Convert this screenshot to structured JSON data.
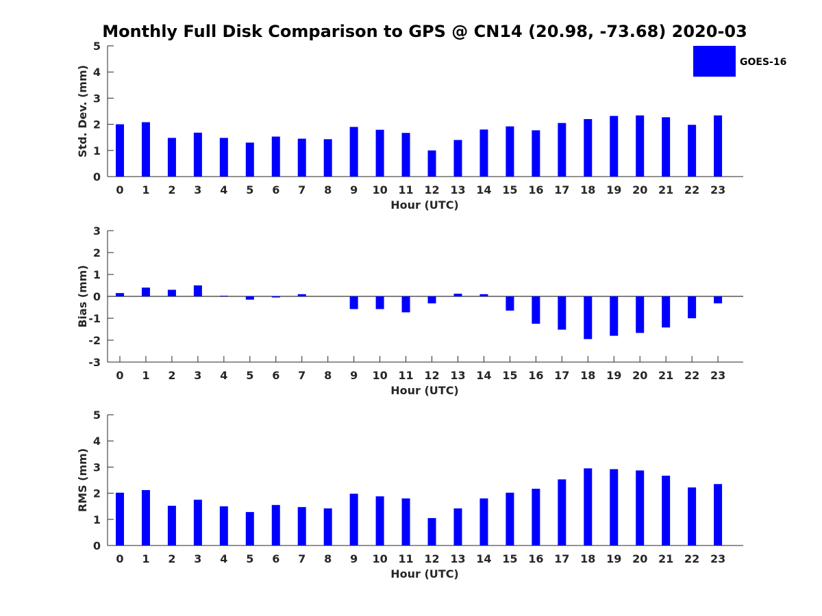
{
  "title": "Monthly Full Disk Comparison to GPS @ CN14 (20.98, -73.68) 2020-03",
  "legend": {
    "label": "GOES-16",
    "position": "top-right"
  },
  "bar_color": "#0000ff",
  "chart_data": [
    {
      "type": "bar",
      "ylabel": "Std. Dev. (mm)",
      "xlabel": "Hour (UTC)",
      "ylim": [
        0,
        5
      ],
      "yticks": [
        0,
        1,
        2,
        3,
        4,
        5
      ],
      "categories": [
        0,
        1,
        2,
        3,
        4,
        5,
        6,
        7,
        8,
        9,
        10,
        11,
        12,
        13,
        14,
        15,
        16,
        17,
        18,
        19,
        20,
        21,
        22,
        23
      ],
      "series": [
        {
          "name": "GOES-16",
          "values": [
            2.0,
            2.08,
            1.48,
            1.68,
            1.48,
            1.3,
            1.53,
            1.45,
            1.43,
            1.9,
            1.79,
            1.67,
            1.0,
            1.4,
            1.8,
            1.92,
            1.77,
            2.05,
            2.2,
            2.32,
            2.34,
            2.27,
            1.98,
            2.34
          ]
        }
      ]
    },
    {
      "type": "bar",
      "ylabel": "Bias (mm)",
      "xlabel": "Hour (UTC)",
      "ylim": [
        -3,
        3
      ],
      "yticks": [
        -3,
        -2,
        -1,
        0,
        1,
        2,
        3
      ],
      "zero_line": true,
      "categories": [
        0,
        1,
        2,
        3,
        4,
        5,
        6,
        7,
        8,
        9,
        10,
        11,
        12,
        13,
        14,
        15,
        16,
        17,
        18,
        19,
        20,
        21,
        22,
        23
      ],
      "series": [
        {
          "name": "GOES-16",
          "values": [
            0.15,
            0.4,
            0.3,
            0.5,
            0.03,
            -0.15,
            -0.05,
            0.1,
            0.0,
            -0.58,
            -0.58,
            -0.73,
            -0.32,
            0.12,
            0.1,
            -0.65,
            -1.25,
            -1.52,
            -1.95,
            -1.8,
            -1.67,
            -1.42,
            -1.0,
            -0.32
          ]
        }
      ]
    },
    {
      "type": "bar",
      "ylabel": "RMS (mm)",
      "xlabel": "Hour (UTC)",
      "ylim": [
        0,
        5
      ],
      "yticks": [
        0,
        1,
        2,
        3,
        4,
        5
      ],
      "categories": [
        0,
        1,
        2,
        3,
        4,
        5,
        6,
        7,
        8,
        9,
        10,
        11,
        12,
        13,
        14,
        15,
        16,
        17,
        18,
        19,
        20,
        21,
        22,
        23
      ],
      "series": [
        {
          "name": "GOES-16",
          "values": [
            2.02,
            2.12,
            1.52,
            1.75,
            1.5,
            1.28,
            1.55,
            1.47,
            1.42,
            1.98,
            1.88,
            1.8,
            1.05,
            1.42,
            1.8,
            2.02,
            2.17,
            2.53,
            2.95,
            2.92,
            2.87,
            2.67,
            2.22,
            2.35
          ]
        }
      ]
    }
  ]
}
